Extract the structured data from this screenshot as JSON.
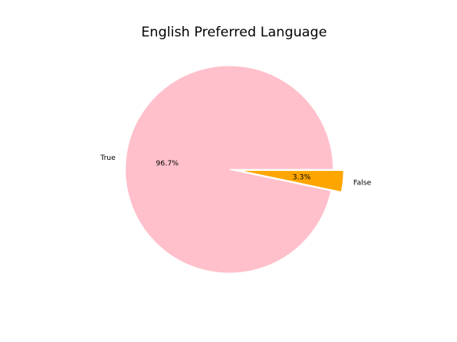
{
  "chart_data": {
    "type": "pie",
    "title": "English Preferred Language",
    "slices": [
      {
        "label": "True",
        "value": 96.7,
        "pct_label": "96.7%",
        "color": "#ffc0cb",
        "exploded": false
      },
      {
        "label": "False",
        "value": 3.3,
        "pct_label": "3.3%",
        "color": "#ffa500",
        "exploded": true
      }
    ]
  }
}
